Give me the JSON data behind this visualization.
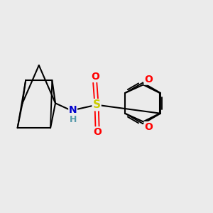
{
  "background_color": "#ebebeb",
  "bond_color": "#000000",
  "bond_width": 1.5,
  "atom_colors": {
    "N": "#0000cc",
    "S": "#cccc00",
    "O": "#ff0000",
    "C": "#000000",
    "H": "#5599aa"
  },
  "figsize": [
    3.0,
    3.0
  ],
  "dpi": 100
}
